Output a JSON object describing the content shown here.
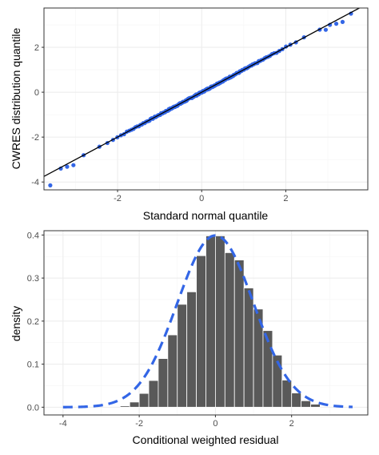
{
  "chart_data": [
    {
      "type": "scatter",
      "subtype": "qq-plot",
      "xlabel": "Standard normal quantile",
      "ylabel": "CWRES distribution quantile",
      "xlim": [
        -3.75,
        3.95
      ],
      "ylim": [
        -4.35,
        3.75
      ],
      "xticks": [
        "-2",
        "0",
        "2"
      ],
      "yticks": [
        "-4",
        "-2",
        "0",
        "2"
      ],
      "grid": true,
      "colors": {
        "points": "#3366e6",
        "reference_line": "#000000"
      },
      "reference_line": {
        "slope": 1.0,
        "intercept": 0.0
      },
      "points": {
        "n": 200,
        "deviations": [
          {
            "x": -3.6,
            "y": -4.15
          },
          {
            "x": -3.35,
            "y": -3.4
          },
          {
            "x": -3.2,
            "y": -3.32
          },
          {
            "x": -3.05,
            "y": -3.25
          },
          {
            "x": 2.95,
            "y": 2.78
          },
          {
            "x": 3.05,
            "y": 3.0
          },
          {
            "x": 3.2,
            "y": 3.05
          },
          {
            "x": 3.35,
            "y": 3.13
          },
          {
            "x": 3.55,
            "y": 3.5
          }
        ]
      }
    },
    {
      "type": "bar",
      "subtype": "histogram-with-density",
      "xlabel": "Conditional weighted residual",
      "ylabel": "density",
      "xlim": [
        -4.5,
        4.0
      ],
      "ylim": [
        -0.018,
        0.41
      ],
      "xticks": [
        "-4",
        "-2",
        "0",
        "2"
      ],
      "yticks": [
        "0.0",
        "0.1",
        "0.2",
        "0.3",
        "0.4"
      ],
      "grid": true,
      "colors": {
        "bars": "#595959",
        "bar_edge": "#ffffff",
        "density_curve": "#3366e6"
      },
      "bins": [
        {
          "x0": -2.5,
          "x1": -2.25,
          "density": 0.003
        },
        {
          "x0": -2.25,
          "x1": -2.0,
          "density": 0.012
        },
        {
          "x0": -2.0,
          "x1": -1.75,
          "density": 0.032
        },
        {
          "x0": -1.75,
          "x1": -1.5,
          "density": 0.062
        },
        {
          "x0": -1.5,
          "x1": -1.25,
          "density": 0.113
        },
        {
          "x0": -1.25,
          "x1": -1.0,
          "density": 0.168
        },
        {
          "x0": -1.0,
          "x1": -0.75,
          "density": 0.239
        },
        {
          "x0": -0.75,
          "x1": -0.5,
          "density": 0.268
        },
        {
          "x0": -0.5,
          "x1": -0.25,
          "density": 0.352
        },
        {
          "x0": -0.25,
          "x1": 0.0,
          "density": 0.398
        },
        {
          "x0": 0.0,
          "x1": 0.25,
          "density": 0.398
        },
        {
          "x0": 0.25,
          "x1": 0.5,
          "density": 0.359
        },
        {
          "x0": 0.5,
          "x1": 0.75,
          "density": 0.342
        },
        {
          "x0": 0.75,
          "x1": 1.0,
          "density": 0.277
        },
        {
          "x0": 1.0,
          "x1": 1.25,
          "density": 0.228
        },
        {
          "x0": 1.25,
          "x1": 1.5,
          "density": 0.178
        },
        {
          "x0": 1.5,
          "x1": 1.75,
          "density": 0.121
        },
        {
          "x0": 1.75,
          "x1": 2.0,
          "density": 0.063
        },
        {
          "x0": 2.0,
          "x1": 2.25,
          "density": 0.033
        },
        {
          "x0": 2.25,
          "x1": 2.5,
          "density": 0.015
        },
        {
          "x0": 2.5,
          "x1": 2.75,
          "density": 0.007
        }
      ],
      "density_curve": {
        "distribution": "normal",
        "mean": 0.0,
        "sd": 1.0,
        "x_range": [
          -4.0,
          3.6
        ],
        "line_style": "dashed"
      }
    }
  ]
}
